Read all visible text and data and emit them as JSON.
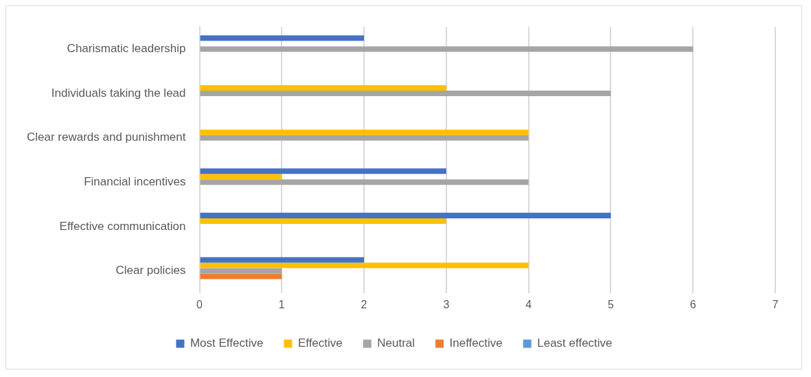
{
  "chart_data": {
    "type": "bar",
    "orientation": "horizontal",
    "categories": [
      "Charismatic leadership",
      "Individuals taking the lead",
      "Clear rewards and punishment",
      "Financial incentives",
      "Effective communication",
      "Clear policies"
    ],
    "series": [
      {
        "name": "Most Effective",
        "color": "#4472c4",
        "values": [
          2,
          0,
          0,
          3,
          5,
          2
        ]
      },
      {
        "name": "Effective",
        "color": "#ffc000",
        "values": [
          0,
          3,
          4,
          1,
          3,
          4
        ]
      },
      {
        "name": "Neutral",
        "color": "#a5a5a5",
        "values": [
          6,
          5,
          4,
          4,
          0,
          1
        ]
      },
      {
        "name": "Ineffective",
        "color": "#ed7d31",
        "values": [
          0,
          0,
          0,
          0,
          0,
          1
        ]
      },
      {
        "name": "Least effective",
        "color": "#5b9bd5",
        "values": [
          0,
          0,
          0,
          0,
          0,
          0
        ]
      }
    ],
    "xlim": [
      0,
      7
    ],
    "xticks": [
      0,
      1,
      2,
      3,
      4,
      5,
      6,
      7
    ],
    "grid": "x",
    "legend": "bottom"
  }
}
